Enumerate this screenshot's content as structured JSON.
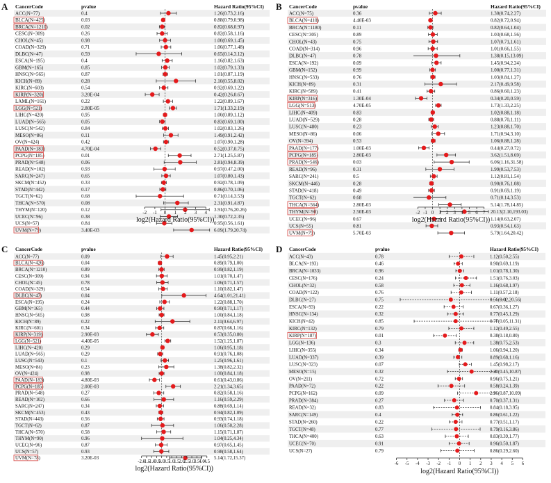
{
  "chart_data": [
    {
      "type": "forest",
      "panel_label": "A",
      "headers": {
        "cancer": "CancerCode",
        "pvalue": "pvalue",
        "hr": "Hazard Ratio(95%CI)"
      },
      "xlabel": "log2(Hazard Ratio(95%CI))",
      "xticks": [
        -2,
        -1,
        0,
        1,
        2,
        3,
        4
      ],
      "xlim": [
        -2.9,
        4.6
      ],
      "rows": [
        {
          "code": "ACC(N=77)",
          "p": "0.4",
          "hr": "1.26(0.73,2.16)",
          "highlight": false
        },
        {
          "code": "BLCA(N=425)",
          "p": "0.03",
          "hr": "0.88(0.79,0.98)",
          "highlight": true
        },
        {
          "code": "BRCA(N=1210)",
          "p": "0.02",
          "hr": "0.82(0.68,0.97)",
          "highlight": true
        },
        {
          "code": "CESC(N=309)",
          "p": "0.26",
          "hr": "0.82(0.58,1.16)",
          "highlight": false
        },
        {
          "code": "CHOL(N=45)",
          "p": "0.98",
          "hr": "1.00(0.69,1.45)",
          "highlight": false
        },
        {
          "code": "COAD(N=329)",
          "p": "0.71",
          "hr": "1.06(0.77,1.48)",
          "highlight": false
        },
        {
          "code": "DLBC(N=47)",
          "p": "0.59",
          "hr": "0.65(0.14,3.12)",
          "highlight": false
        },
        {
          "code": "ESCA(N=195)",
          "p": "0.4",
          "hr": "1.16(0.82,1.63)",
          "highlight": false
        },
        {
          "code": "GBM(N=165)",
          "p": "0.85",
          "hr": "1.02(0.79,1.33)",
          "highlight": false
        },
        {
          "code": "HNSC(N=565)",
          "p": "0.87",
          "hr": "1.01(0.87,1.19)",
          "highlight": false
        },
        {
          "code": "KICH(N=89)",
          "p": "0.28",
          "hr": "2.10(0.55,8.02)",
          "highlight": false
        },
        {
          "code": "KIRC(N=603)",
          "p": "0.54",
          "hr": "0.92(0.69,1.22)",
          "highlight": false
        },
        {
          "code": "KIRP(N=320)",
          "p": "3.20E-04",
          "hr": "0.42(0.26,0.67)",
          "highlight": true
        },
        {
          "code": "LAML(N=161)",
          "p": "0.22",
          "hr": "1.22(0.89,1.67)",
          "highlight": false
        },
        {
          "code": "LGG(N=521)",
          "p": "2.80E-05",
          "hr": "1.71(1.33,2.19)",
          "highlight": true
        },
        {
          "code": "LIHC(N=420)",
          "p": "0.95",
          "hr": "1.00(0.89,1.12)",
          "highlight": false
        },
        {
          "code": "LUAD(N=565)",
          "p": "0.05",
          "hr": "0.83(0.69,1.00)",
          "highlight": false
        },
        {
          "code": "LUSC(N=542)",
          "p": "0.84",
          "hr": "1.02(0.83,1.26)",
          "highlight": false
        },
        {
          "code": "MESO(N=86)",
          "p": "0.11",
          "hr": "1.49(0.91,2.42)",
          "highlight": false
        },
        {
          "code": "OV(N=424)",
          "p": "0.42",
          "hr": "1.07(0.90,1.28)",
          "highlight": false
        },
        {
          "code": "PAAD(N=183)",
          "p": "4.70E-04",
          "hr": "0.52(0.37,0.75)",
          "highlight": true
        },
        {
          "code": "PCPG(N=185)",
          "p": "0.01",
          "hr": "2.71(1.25,5.87)",
          "highlight": true
        },
        {
          "code": "PRAD(N=548)",
          "p": "0.06",
          "hr": "2.81(0.94,8.39)",
          "highlight": false
        },
        {
          "code": "READ(N=102)",
          "p": "0.93",
          "hr": "0.97(0.47,2.00)",
          "highlight": false
        },
        {
          "code": "SARC(N=247)",
          "p": "0.65",
          "hr": "1.07(0.80,1.43)",
          "highlight": false
        },
        {
          "code": "SKCM(N=452)",
          "p": "0.33",
          "hr": "0.92(0.78,1.09)",
          "highlight": false
        },
        {
          "code": "STAD(N=442)",
          "p": "0.17",
          "hr": "0.86(0.70,1.06)",
          "highlight": false
        },
        {
          "code": "TGCT(N=62)",
          "p": "0.68",
          "hr": "0.71(0.14,3.53)",
          "highlight": false
        },
        {
          "code": "THCA(N=570)",
          "p": "0.08",
          "hr": "2.31(0.91,4.87)",
          "highlight": false
        },
        {
          "code": "THYM(N=120)",
          "p": "0.12",
          "hr": "3.91(0.76,20.26)",
          "highlight": false
        },
        {
          "code": "UCEC(N=96)",
          "p": "0.38",
          "hr": "1.30(0.72,2.35)",
          "highlight": false
        },
        {
          "code": "UCS(N=57)",
          "p": "0.84",
          "hr": "0.95(0.56,1.61)",
          "highlight": false
        },
        {
          "code": "UVM(N=79)",
          "p": "3.40E-03",
          "hr": "6.09(1.79,20.74)",
          "highlight": true
        }
      ]
    },
    {
      "type": "forest",
      "panel_label": "B",
      "headers": {
        "cancer": "CancerCode",
        "pvalue": "pvalue",
        "hr": "Hazard Ratio(95%CI)"
      },
      "xlabel": "log2(Hazard Ratio(95%CI))",
      "xticks": [
        -2,
        -1,
        0,
        1,
        2,
        3,
        4,
        5,
        6,
        7
      ],
      "xlim": [
        -2.6,
        7.6
      ],
      "rows": [
        {
          "code": "ACC(N=75)",
          "p": "0.36",
          "hr": "1.30(0.74,2.27)",
          "highlight": false
        },
        {
          "code": "BLCA(N=410)",
          "p": "4.40E-03",
          "hr": "0.82(0.72,0.94)",
          "highlight": true
        },
        {
          "code": "BRCA(N=1180)",
          "p": "0.11",
          "hr": "0.82(0.64,1.04)",
          "highlight": false
        },
        {
          "code": "CESC(N=305)",
          "p": "0.89",
          "hr": "1.03(0.68,1.56)",
          "highlight": false
        },
        {
          "code": "CHOL(N=43)",
          "p": "0.75",
          "hr": "1.07(0.71,1.61)",
          "highlight": false
        },
        {
          "code": "COAD(N=314)",
          "p": "0.96",
          "hr": "1.01(0.66,1.55)",
          "highlight": false
        },
        {
          "code": "DLBC(N=47)",
          "p": "0.78",
          "hr": "1.38(0.15,13.09)",
          "highlight": false
        },
        {
          "code": "ESCA(N=192)",
          "p": "0.09",
          "hr": "1.45(0.94,2.24)",
          "highlight": false
        },
        {
          "code": "GBM(N=152)",
          "p": "0.99",
          "hr": "1.00(0.77,1.31)",
          "highlight": false
        },
        {
          "code": "HNSC(N=533)",
          "p": "0.76",
          "hr": "1.03(0.84,1.27)",
          "highlight": false
        },
        {
          "code": "KICH(N=89)",
          "p": "0.31",
          "hr": "2.17(0.49,9.58)",
          "highlight": false
        },
        {
          "code": "KIRC(N=589)",
          "p": "0.41",
          "hr": "0.86(0.60,1.23)",
          "highlight": false
        },
        {
          "code": "KIRP(N=316)",
          "p": "1.30E-04",
          "hr": "0.34(0.20,0.59)",
          "highlight": true
        },
        {
          "code": "LGG(N=513)",
          "p": "4.70E-05",
          "hr": "1.73(1.33,2.25)",
          "highlight": true
        },
        {
          "code": "LIHC(N=409)",
          "p": "0.83",
          "hr": "1.02(0.88,1.18)",
          "highlight": false
        },
        {
          "code": "LUAD(N=529)",
          "p": "0.28",
          "hr": "0.88(0.70,1.11)",
          "highlight": false
        },
        {
          "code": "LUSC(N=480)",
          "p": "0.23",
          "hr": "1.23(0.88,1.70)",
          "highlight": false
        },
        {
          "code": "MESO(N=86)",
          "p": "0.06",
          "hr": "1.71(0.94,3.10)",
          "highlight": false
        },
        {
          "code": "OV(N=394)",
          "p": "0.53",
          "hr": "1.06(0.88,1.28)",
          "highlight": false
        },
        {
          "code": "PAAD(N=177)",
          "p": "1.00E-03",
          "hr": "0.44(0.27,0.72)",
          "highlight": true
        },
        {
          "code": "PCPG(N=185)",
          "p": "2.80E-03",
          "hr": "3.62(1.51,8.69)",
          "highlight": true
        },
        {
          "code": "PRAD(N=546)",
          "p": "0.03",
          "hr": "6.06(1.16,31.58)",
          "highlight": true
        },
        {
          "code": "READ(N=96)",
          "p": "0.31",
          "hr": "1.99(0.53,7.53)",
          "highlight": false
        },
        {
          "code": "SARC(N=241)",
          "p": "0.5",
          "hr": "1.12(0.81,1.54)",
          "highlight": false
        },
        {
          "code": "SKCM(N=446)",
          "p": "0.28",
          "hr": "0.90(0.76,1.08)",
          "highlight": false
        },
        {
          "code": "STAD(N=418)",
          "p": "0.49",
          "hr": "0.91(0.69,1.19)",
          "highlight": false
        },
        {
          "code": "TGCT(N=62)",
          "p": "0.68",
          "hr": "0.71(0.14,3.53)",
          "highlight": false
        },
        {
          "code": "THCA(N=564)",
          "p": "2.80E-03",
          "hr": "5.14(1.78,14.85)",
          "highlight": true
        },
        {
          "code": "THYM(N=90)",
          "p": "2.50E-03",
          "hr": "20.13(2.10,193.03)",
          "highlight": true
        },
        {
          "code": "UCEC(N=96)",
          "p": "0.67",
          "hr": "1.14(0.63,2.07)",
          "highlight": false
        },
        {
          "code": "UCS(N=55)",
          "p": "0.81",
          "hr": "0.93(0.54,1.63)",
          "highlight": false
        },
        {
          "code": "UVM(N=79)",
          "p": "5.70E-03",
          "hr": "5.79(1.64,20.42)",
          "highlight": true
        }
      ]
    },
    {
      "type": "forest",
      "panel_label": "C",
      "headers": {
        "cancer": "CancerCode",
        "pvalue": "pvalue",
        "hr": "Hazard Ratio(95%CI)"
      },
      "xlabel": "log2(Hazard Ratio(95%CI))",
      "xticks": [
        -2.0,
        -1.5,
        -1.0,
        -0.5,
        0.0,
        0.5,
        1.0,
        1.5,
        2.0,
        2.5,
        3.0,
        3.5,
        4.0,
        4.5
      ],
      "xlim": [
        -2.6,
        5.0
      ],
      "rows": [
        {
          "code": "ACC(N=77)",
          "p": "0.09",
          "hr": "1.45(0.95,2.21)",
          "highlight": false
        },
        {
          "code": "BLCA(N=426)",
          "p": "0.04",
          "hr": "0.89(0.79,1.00)",
          "highlight": true
        },
        {
          "code": "BRCA(N=1210)",
          "p": "0.89",
          "hr": "0.99(0.82,1.19)",
          "highlight": false
        },
        {
          "code": "CESC(N=309)",
          "p": "0.94",
          "hr": "1.01(0.70,1.47)",
          "highlight": false
        },
        {
          "code": "CHOL(N=45)",
          "p": "0.78",
          "hr": "1.06(0.71,1.57)",
          "highlight": false
        },
        {
          "code": "COAD(N=329)",
          "p": "0.54",
          "hr": "1.10(0.82,1.47)",
          "highlight": false
        },
        {
          "code": "DLBC(N=47)",
          "p": "0.04",
          "hr": "4.64(1.01,21.41)",
          "highlight": true
        },
        {
          "code": "ESCA(N=195)",
          "p": "0.24",
          "hr": "1.22(0.88,1.70)",
          "highlight": false
        },
        {
          "code": "GBM(N=165)",
          "p": "0.44",
          "hr": "0.90(0.71,1.17)",
          "highlight": false
        },
        {
          "code": "HNSC(N=565)",
          "p": "0.98",
          "hr": "1.00(0.84,1.18)",
          "highlight": false
        },
        {
          "code": "KICH(N=89)",
          "p": "0.22",
          "hr": "2.11(0.64,6.97)",
          "highlight": false
        },
        {
          "code": "KIRC(N=601)",
          "p": "0.34",
          "hr": "0.87(0.66,1.16)",
          "highlight": false
        },
        {
          "code": "KIRP(N=319)",
          "p": "2.90E-03",
          "hr": "0.53(0.35,0.80)",
          "highlight": true
        },
        {
          "code": "LGG(N=521)",
          "p": "4.40E-05",
          "hr": "1.52(1.25,1.87)",
          "highlight": true
        },
        {
          "code": "LIHC(N=420)",
          "p": "0.29",
          "hr": "1.06(0.95,1.18)",
          "highlight": false
        },
        {
          "code": "LUAD(N=565)",
          "p": "0.29",
          "hr": "0.91(0.76,1.08)",
          "highlight": false
        },
        {
          "code": "LUSC(N=543)",
          "p": "0.1",
          "hr": "1.25(0.96,1.61)",
          "highlight": false
        },
        {
          "code": "MESO(N=84)",
          "p": "0.23",
          "hr": "1.38(0.82,2.32)",
          "highlight": false
        },
        {
          "code": "OV(N=424)",
          "p": "0.98",
          "hr": "1.00(0.84,1.18)",
          "highlight": false
        },
        {
          "code": "PAAD(N=183)",
          "p": "4.80E-03",
          "hr": "0.61(0.43,0.86)",
          "highlight": true
        },
        {
          "code": "PCPG(N=185)",
          "p": "2.00E-03",
          "hr": "2.21(1.34,3.65)",
          "highlight": true
        },
        {
          "code": "PRAD(N=548)",
          "p": "0.27",
          "hr": "0.82(0.58,1.16)",
          "highlight": false
        },
        {
          "code": "READ(N=102)",
          "p": "0.66",
          "hr": "1.16(0.59,2.29)",
          "highlight": false
        },
        {
          "code": "SARC(N=247)",
          "p": "0.34",
          "hr": "0.88(0.69,1.14)",
          "highlight": false
        },
        {
          "code": "SKCM(N=453)",
          "p": "0.43",
          "hr": "0.94(0.82,1.09)",
          "highlight": false
        },
        {
          "code": "STAD(N=443)",
          "p": "0.56",
          "hr": "0.93(0.74,1.18)",
          "highlight": false
        },
        {
          "code": "TGCT(N=62)",
          "p": "0.87",
          "hr": "1.06(0.50,2.28)",
          "highlight": false
        },
        {
          "code": "THCA(N=570)",
          "p": "0.58",
          "hr": "1.15(0.71,1.87)",
          "highlight": false
        },
        {
          "code": "THYM(N=90)",
          "p": "0.96",
          "hr": "1.04(0.25,4.34)",
          "highlight": false
        },
        {
          "code": "UCEC(N=96)",
          "p": "0.87",
          "hr": "0.97(0.65,1.45)",
          "highlight": false
        },
        {
          "code": "UCS(N=57)",
          "p": "0.93",
          "hr": "0.98(0.58,1.64)",
          "highlight": false
        },
        {
          "code": "UVM(N=78)",
          "p": "3.20E-03",
          "hr": "5.14(1.72,15.37)",
          "highlight": true
        }
      ]
    },
    {
      "type": "forest",
      "panel_label": "D",
      "headers": {
        "cancer": "CancerCode",
        "pvalue": "pvalue",
        "hr": "Hazard Ratio(95%CI)"
      },
      "xlabel": "log2(Hazard Ratio(95%CI))",
      "xticks": [
        -6,
        -5,
        -4,
        -3,
        -2,
        -1,
        0,
        1,
        2,
        3,
        4,
        5,
        6
      ],
      "xlim": [
        -6.5,
        6.5
      ],
      "dashed_ci": true,
      "rows": [
        {
          "code": "ACC(N=43)",
          "p": "0.78",
          "hr": "1.12(0.50,2.55)",
          "highlight": false
        },
        {
          "code": "BLCA(N=193)",
          "p": "0.46",
          "hr": "0.90(0.69,1.19)",
          "highlight": false
        },
        {
          "code": "BRCA(N=1033)",
          "p": "0.96",
          "hr": "1.01(0.78,1.30)",
          "highlight": false
        },
        {
          "code": "CESC(N=176)",
          "p": "0.24",
          "hr": "1.51(0.76,3.03)",
          "highlight": false
        },
        {
          "code": "CHOL(N=32)",
          "p": "0.58",
          "hr": "1.16(0.68,1.97)",
          "highlight": false
        },
        {
          "code": "COAD(N=122)",
          "p": "0.76",
          "hr": "1.11(0.57,2.18)",
          "highlight": false
        },
        {
          "code": "DLBC(N=27)",
          "p": "0.75",
          "hr": "0.56(0.02,20.56)",
          "highlight": false
        },
        {
          "code": "ESCA(N=93)",
          "p": "0.22",
          "hr": "0.67(0.36,1.27)",
          "highlight": false
        },
        {
          "code": "HNSC(N=134)",
          "p": "0.32",
          "hr": "0.77(0.45,1.29)",
          "highlight": false
        },
        {
          "code": "KICH(N=42)",
          "p": "0.85",
          "hr": "0.77(0.05,11.31)",
          "highlight": false
        },
        {
          "code": "KIRC(N=132)",
          "p": "0.79",
          "hr": "1.12(0.49,2.55)",
          "highlight": false
        },
        {
          "code": "KIRP(N=187)",
          "p": "0.01",
          "hr": "0.38(0.18,0.80)",
          "highlight": true
        },
        {
          "code": "LGG(N=136)",
          "p": "0.3",
          "hr": "1.38(0.75,2.53)",
          "highlight": false
        },
        {
          "code": "LIHC(N=355)",
          "p": "0.34",
          "hr": "1.06(0.94,1.20)",
          "highlight": false
        },
        {
          "code": "LUAD(N=337)",
          "p": "0.39",
          "hr": "0.89(0.68,1.16)",
          "highlight": false
        },
        {
          "code": "LUSC(N=323)",
          "p": "0.07",
          "hr": "1.45(0.98,2.17)",
          "highlight": false
        },
        {
          "code": "MESO(N=15)",
          "p": "0.32",
          "hr": "2.20(0.45,10.87)",
          "highlight": false
        },
        {
          "code": "OV(N=211)",
          "p": "0.72",
          "hr": "0.96(0.75,1.21)",
          "highlight": false
        },
        {
          "code": "PAAD(N=72)",
          "p": "0.22",
          "hr": "0.58(0.24,1.39)",
          "highlight": false
        },
        {
          "code": "PCPG(N=162)",
          "p": "0.09",
          "hr": "2.96(0.87,10.09)",
          "highlight": false
        },
        {
          "code": "PRAD(N=384)",
          "p": "0.27",
          "hr": "0.70(0.37,1.31)",
          "highlight": false
        },
        {
          "code": "READ(N=32)",
          "p": "0.83",
          "hr": "0.84(0.18,3.95)",
          "highlight": false
        },
        {
          "code": "SARC(N=149)",
          "p": "0.4",
          "hr": "0.86(0.61,1.22)",
          "highlight": false
        },
        {
          "code": "STAD(N=260)",
          "p": "0.22",
          "hr": "0.77(0.51,1.17)",
          "highlight": false
        },
        {
          "code": "TGCT(N=48)",
          "p": "0.77",
          "hr": "0.79(0.16,3.86)",
          "highlight": false
        },
        {
          "code": "THCA(N=400)",
          "p": "0.63",
          "hr": "0.83(0.39,1.77)",
          "highlight": false
        },
        {
          "code": "UCEC(N=70)",
          "p": "0.91",
          "hr": "0.96(0.50,1.87)",
          "highlight": false
        },
        {
          "code": "UCS(N=27)",
          "p": "0.79",
          "hr": "0.86(0.29,2.60)",
          "highlight": false
        }
      ]
    }
  ]
}
